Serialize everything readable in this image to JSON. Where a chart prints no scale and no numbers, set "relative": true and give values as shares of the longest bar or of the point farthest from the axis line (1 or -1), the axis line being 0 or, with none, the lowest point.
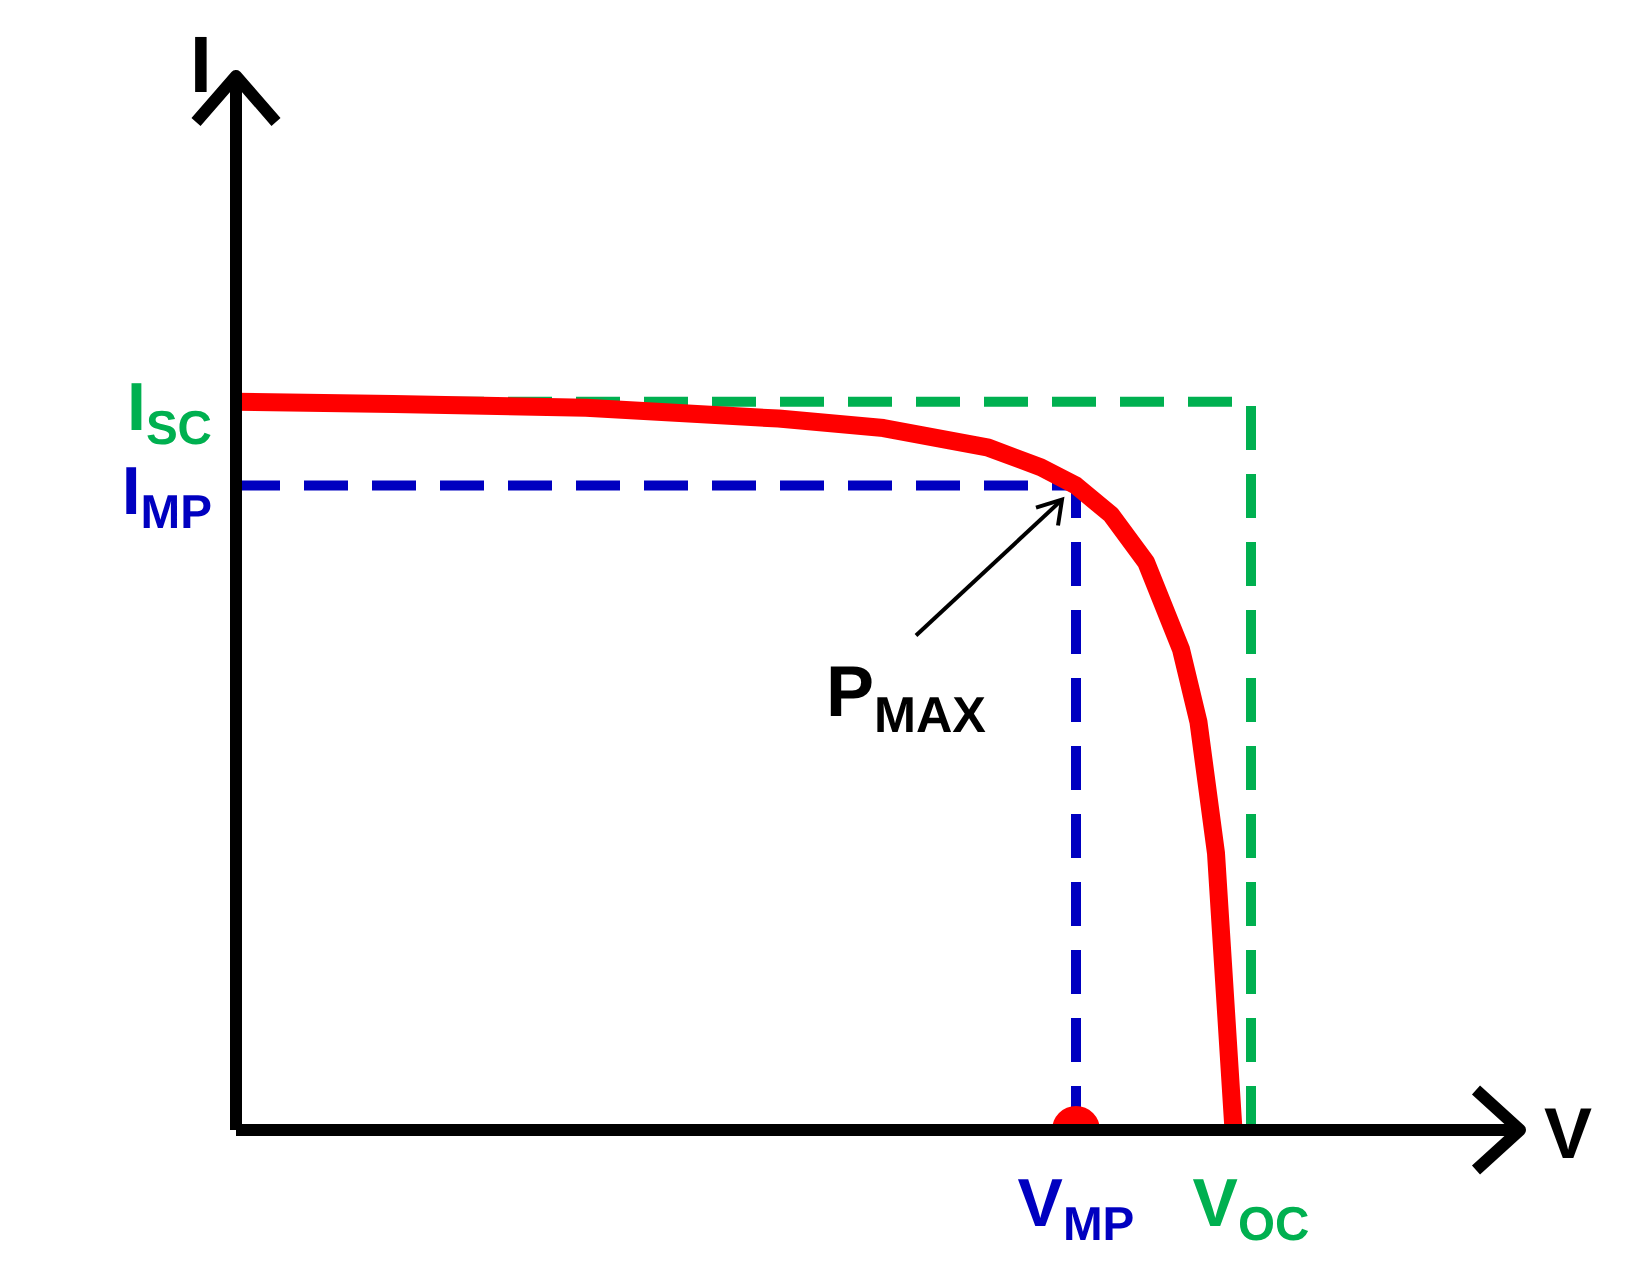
{
  "chart_data": {
    "type": "line",
    "xlabel": "V",
    "ylabel": "I",
    "relative": true,
    "marker": "none",
    "line_style": "solid",
    "categories": [
      null,
      null,
      null,
      null,
      null,
      null,
      null,
      null,
      null,
      null,
      null,
      null,
      null,
      null,
      null,
      null,
      null,
      null,
      null,
      null,
      null,
      null,
      null,
      null,
      null,
      null,
      null,
      null,
      null,
      null,
      null,
      null,
      null,
      null,
      null,
      null,
      null,
      null,
      null,
      null,
      null,
      null,
      null,
      null,
      null,
      null,
      null,
      null,
      "V$_{MP}$",
      null,
      null,
      null,
      null,
      null,
      null,
      null,
      null,
      null,
      "V$_{OC}$",
      null,
      null,
      null,
      null,
      null,
      null,
      null,
      null,
      null,
      null,
      null,
      null,
      null,
      null
    ],
    "series": [
      {
        "color": "#ff0000",
        "values": [
          1,
          null,
          null,
          null,
          null,
          null,
          null,
          null,
          null,
          0.997,
          null,
          null,
          null,
          null,
          null,
          null,
          null,
          null,
          null,
          null,
          0.992,
          null,
          null,
          null,
          null,
          null,
          null,
          null,
          null,
          null,
          null,
          0.977,
          null,
          null,
          null,
          null,
          null,
          0.964,
          null,
          null,
          null,
          null,
          null,
          0.937,
          null,
          null,
          0.91,
          null,
          0.885,
          null,
          0.845,
          null,
          0.78,
          null,
          0.66,
          0.56,
          0.38,
          0,
          null,
          null,
          null,
          null,
          null,
          null,
          null,
          null,
          null,
          null,
          null,
          null,
          null,
          null,
          null
        ]
      },
      {
        "type": "scatter",
        "color": "#ff0000",
        "marker": "circle",
        "values": [
          null,
          null,
          null,
          null,
          null,
          null,
          null,
          null,
          null,
          null,
          null,
          null,
          null,
          null,
          null,
          null,
          null,
          null,
          null,
          null,
          null,
          null,
          null,
          null,
          null,
          null,
          null,
          null,
          null,
          null,
          null,
          null,
          null,
          null,
          null,
          null,
          null,
          null,
          null,
          null,
          null,
          null,
          null,
          null,
          null,
          null,
          null,
          null,
          0,
          null,
          null,
          null,
          null,
          null,
          null,
          null,
          null,
          null,
          null,
          null,
          null,
          null,
          null,
          null,
          null,
          null,
          null,
          null,
          null,
          null,
          null,
          null,
          null
        ]
      }
    ],
    "ref_lines": [
      {
        "axis": "y",
        "value": 1,
        "label": "I$_{SC}$",
        "color": "#00b050",
        "line_style": "dashed"
      },
      {
        "axis": "x",
        "value": "V$_{OC}$",
        "color": "#00b050",
        "line_style": "dashed"
      },
      {
        "axis": "y",
        "value": 0.885,
        "label": "I$_{MP}$",
        "color": "#0000c0",
        "line_style": "dashed"
      },
      {
        "axis": "x",
        "value": "V$_{MP}$",
        "color": "#0000c0",
        "line_style": "dashed"
      }
    ],
    "annotations": [
      {
        "text": "P$_{MAX}$",
        "x": "V$_{MP}$",
        "y": 0.885
      }
    ]
  }
}
